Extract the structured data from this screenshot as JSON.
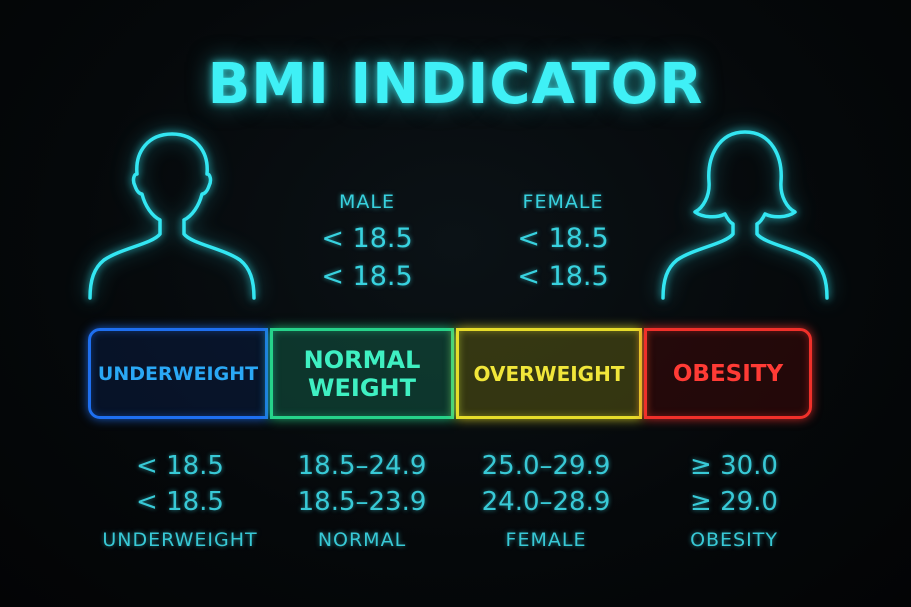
{
  "title": "BMI INDICATOR",
  "icons": {
    "male": "male-silhouette-icon",
    "female": "female-silhouette-icon"
  },
  "colors": {
    "underweight": "#1e6ff0",
    "normal": "#26d38a",
    "overweight": "#e6dc2a",
    "obesity": "#f0302a",
    "accent": "#33e6f2"
  },
  "top_table": {
    "male": {
      "header": "MALE",
      "values": [
        "< 18.5",
        "< 18.5"
      ]
    },
    "female": {
      "header": "FEMALE",
      "values": [
        "< 18.5",
        "< 18.5"
      ]
    }
  },
  "bar": {
    "underweight": "UNDERWEIGHT",
    "normal_line1": "NORMAL",
    "normal_line2": "WEIGHT",
    "overweight": "OVERWEIGHT",
    "obesity": "OBESITY"
  },
  "bottom_table": [
    {
      "row1": "< 18.5",
      "row2": "< 18.5",
      "label": "UNDERWEIGHT"
    },
    {
      "row1": "18.5–24.9",
      "row2": "18.5–23.9",
      "label": "NORMAL"
    },
    {
      "row1": "25.0–29.9",
      "row2": "24.0–28.9",
      "label": "FEMALE"
    },
    {
      "row1": "≥ 30.0",
      "row2": "≥ 29.0",
      "label": "OBESITY"
    }
  ]
}
